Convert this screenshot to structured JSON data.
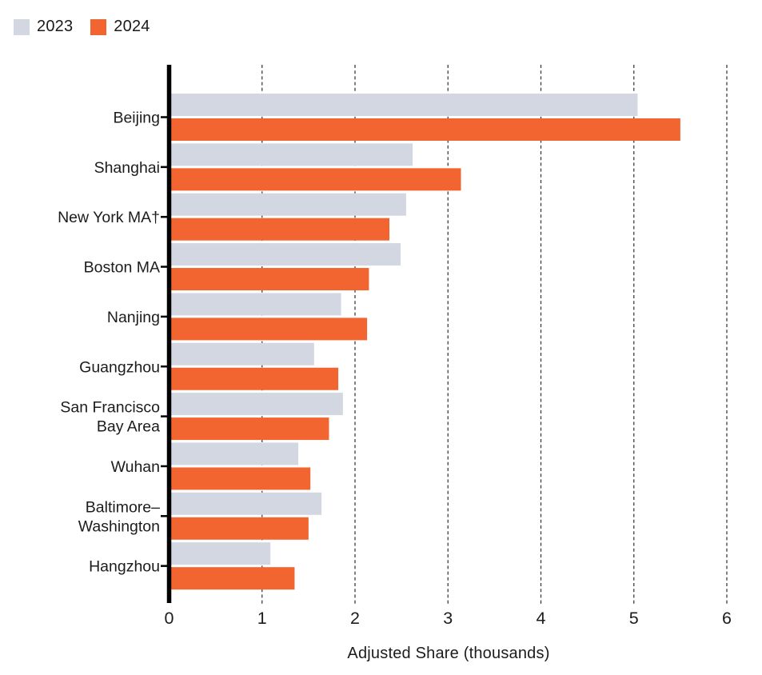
{
  "legend": {
    "items": [
      {
        "label": "2023",
        "color": "#d2d7e2",
        "icon": "square-swatch"
      },
      {
        "label": "2024",
        "color": "#f26531",
        "icon": "square-swatch"
      }
    ]
  },
  "chart_data": {
    "type": "bar",
    "orientation": "horizontal",
    "title": "",
    "xlabel": "Adjusted Share (thousands)",
    "ylabel": "",
    "xlim": [
      0,
      6
    ],
    "xticks": [
      0,
      1,
      2,
      3,
      4,
      5,
      6
    ],
    "grid": "vertical dashed gridlines at ticks 1-6",
    "legend_position": "top-left",
    "categories": [
      "Beijing",
      "Shanghai",
      "New York MA†",
      "Boston MA",
      "Nanjing",
      "Guangzhou",
      "San Francisco\nBay Area",
      "Wuhan",
      "Baltimore–\nWashington",
      "Hangzhou"
    ],
    "series": [
      {
        "name": "2023",
        "color": "#d2d7e2",
        "values": [
          5.04,
          2.62,
          2.55,
          2.49,
          1.85,
          1.56,
          1.87,
          1.39,
          1.64,
          1.09
        ]
      },
      {
        "name": "2024",
        "color": "#f26531",
        "values": [
          5.5,
          3.14,
          2.37,
          2.15,
          2.13,
          1.82,
          1.72,
          1.52,
          1.5,
          1.35
        ]
      }
    ],
    "axis_color": "#000000",
    "gridline_color": "#3d3d3d",
    "text_color": "#1c1c1c"
  }
}
